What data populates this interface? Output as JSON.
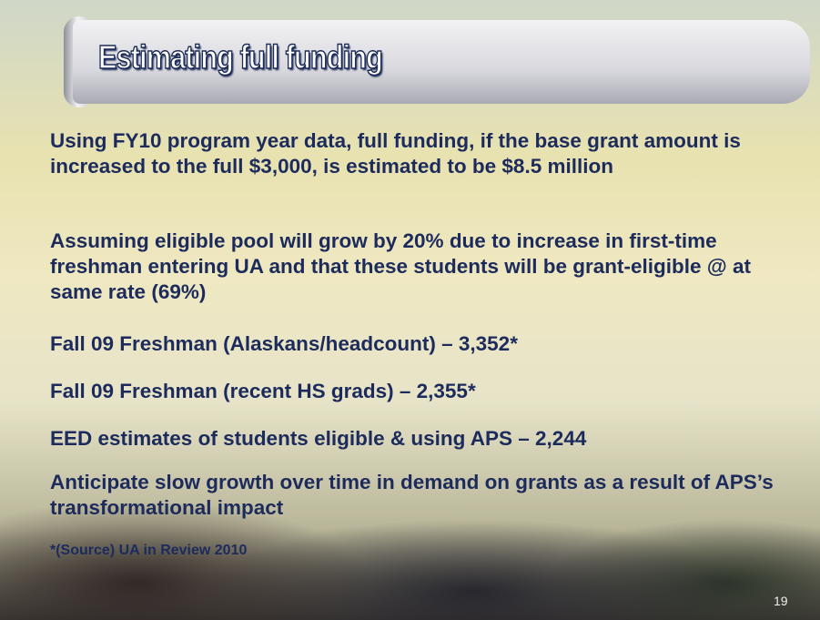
{
  "slide": {
    "title": "Estimating full funding",
    "bullets": [
      "Using FY10 program year data, full funding, if the base grant amount is increased to the full $3,000, is estimated to be $8.5 million",
      "Assuming eligible pool will grow by 20% due to increase in first-time freshman entering UA and that these students will be grant-eligible @ at same rate (69%)",
      "Fall 09 Freshman (Alaskans/headcount) – 3,352*",
      "Fall 09 Freshman (recent HS grads) – 2,355*",
      "EED estimates of students eligible & using APS – 2,244",
      "Anticipate slow growth over time in demand on grants as a result of APS’s transformational impact"
    ],
    "footnote": "*(Source) UA in Review 2010",
    "page_number": "19"
  }
}
